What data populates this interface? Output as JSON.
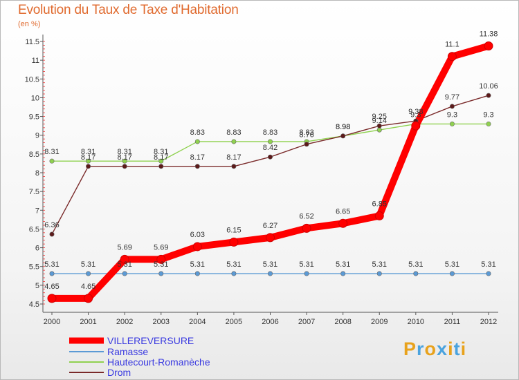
{
  "title": "Evolution du Taux de Taxe d'Habitation",
  "unit": "(en %)",
  "logo": [
    "P",
    "r",
    "o",
    "x",
    "i",
    "t",
    "i"
  ],
  "chart_data": {
    "type": "line",
    "x": [
      "2000",
      "2001",
      "2002",
      "2003",
      "2004",
      "2005",
      "2006",
      "2007",
      "2008",
      "2009",
      "2010",
      "2011",
      "2012"
    ],
    "ylim": [
      4.5,
      11.5
    ],
    "yticks": [
      "4.5",
      "5",
      "5.5",
      "6",
      "6.5",
      "7",
      "7.5",
      "8",
      "8.5",
      "9",
      "9.5",
      "10",
      "10.5",
      "11",
      "11.5"
    ],
    "grid": false,
    "legend": "bottom-left",
    "series": [
      {
        "name": "VILLEREVERSURE",
        "color": "#ff0000",
        "values": [
          4.65,
          4.65,
          5.69,
          5.69,
          6.03,
          6.15,
          6.27,
          6.52,
          6.65,
          6.85,
          9.25,
          11.1,
          11.38
        ],
        "labels": [
          "4.65",
          "4.65",
          "5.69",
          "5.69",
          "6.03",
          "6.15",
          "6.27",
          "6.52",
          "6.65",
          "6.85",
          "",
          "11.1",
          "11.38"
        ]
      },
      {
        "name": "Ramasse",
        "color": "#5b9ad5",
        "values": [
          5.31,
          5.31,
          5.31,
          5.31,
          5.31,
          5.31,
          5.31,
          5.31,
          5.31,
          5.31,
          5.31,
          5.31,
          5.31
        ],
        "labels": [
          "5.31",
          "5.31",
          "5.31",
          "5.31",
          "5.31",
          "5.31",
          "5.31",
          "5.31",
          "5.31",
          "5.31",
          "5.31",
          "5.31",
          "5.31"
        ]
      },
      {
        "name": "Hautecourt-Romanèche",
        "color": "#8fd14f",
        "values": [
          8.31,
          8.31,
          8.31,
          8.31,
          8.83,
          8.83,
          8.83,
          8.83,
          8.98,
          9.14,
          9.3,
          9.3,
          9.3
        ],
        "labels": [
          "8.31",
          "8.31",
          "8.31",
          "8.31",
          "8.83",
          "8.83",
          "8.83",
          "8.83",
          "8.98",
          "9.14",
          "9.3",
          "9.3",
          "9.3"
        ]
      },
      {
        "name": "Drom",
        "color": "#7a2a2a",
        "values": [
          6.36,
          8.17,
          8.17,
          8.17,
          8.17,
          8.17,
          8.42,
          8.76,
          8.98,
          9.25,
          9.38,
          9.77,
          10.06
        ],
        "labels": [
          "6.36",
          "8.17",
          "8.17",
          "8.17",
          "8.17",
          "8.17",
          "8.42",
          "8.76",
          "8.98",
          "9.25",
          "9.38",
          "9.77",
          "10.06"
        ]
      }
    ]
  }
}
